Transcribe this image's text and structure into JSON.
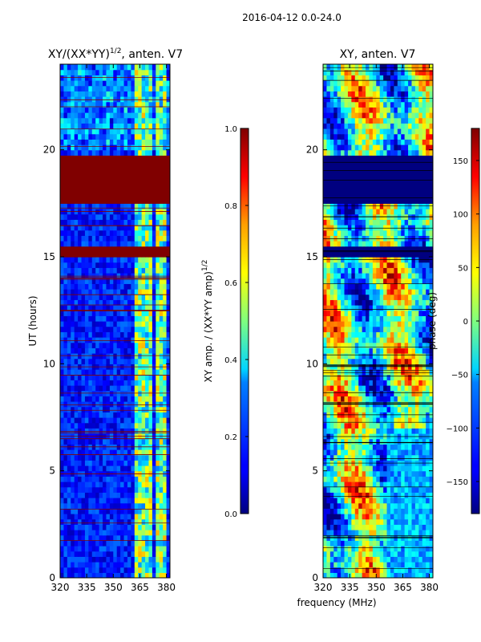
{
  "figure": {
    "suptitle": "2016-04-12 0.0-24.0",
    "xlabel_shared": "frequency (MHz)"
  },
  "colors": {
    "jet_dark_blue": "#00007f",
    "jet_blue": "#0000ff",
    "jet_cyan": "#00ffff",
    "jet_yellow": "#ffff00",
    "jet_red": "#ff0000",
    "jet_dark_red": "#7f0000"
  },
  "chart_data": [
    {
      "type": "heatmap",
      "title": "XY/(XX*YY)",
      "title_superscript": "1/2",
      "title_suffix": ", anten. V7",
      "xlabel": "",
      "ylabel": "UT (hours)",
      "xlim": [
        320,
        382
      ],
      "ylim": [
        0,
        24
      ],
      "xticks": [
        320,
        335,
        350,
        365,
        380
      ],
      "yticks": [
        0,
        5,
        10,
        15,
        20
      ],
      "colorbar": {
        "label": "XY amp. / (XX*YY amp)",
        "label_superscript": "1/2",
        "range": [
          0.0,
          1.0
        ],
        "ticks": [
          "0.0",
          "0.2",
          "0.4",
          "0.6",
          "0.8",
          "1.0"
        ]
      },
      "flagged_bands_hours": [
        [
          17.6,
          19.8
        ],
        [
          15.1,
          15.4
        ],
        [
          9.4,
          9.6
        ],
        [
          8.4,
          8.6
        ]
      ],
      "high_value_freq_bands_mhz": [
        [
          362,
          366
        ],
        [
          367,
          372
        ],
        [
          375,
          380
        ]
      ]
    },
    {
      "type": "heatmap",
      "title": "XY, anten. V7",
      "xlabel": "",
      "ylabel": "",
      "xlim": [
        320,
        382
      ],
      "ylim": [
        0,
        24
      ],
      "xticks": [
        320,
        335,
        350,
        365,
        380
      ],
      "yticks": [
        0,
        5,
        10,
        15,
        20
      ],
      "colorbar": {
        "label": "phase (deg)",
        "range": [
          -180,
          180
        ],
        "ticks": [
          "−150",
          "−100",
          "−50",
          "0",
          "50",
          "100",
          "150"
        ]
      },
      "flagged_bands_hours": [
        [
          17.6,
          19.8
        ],
        [
          15.1,
          15.4
        ],
        [
          9.4,
          9.6
        ],
        [
          8.4,
          8.6
        ]
      ]
    }
  ]
}
